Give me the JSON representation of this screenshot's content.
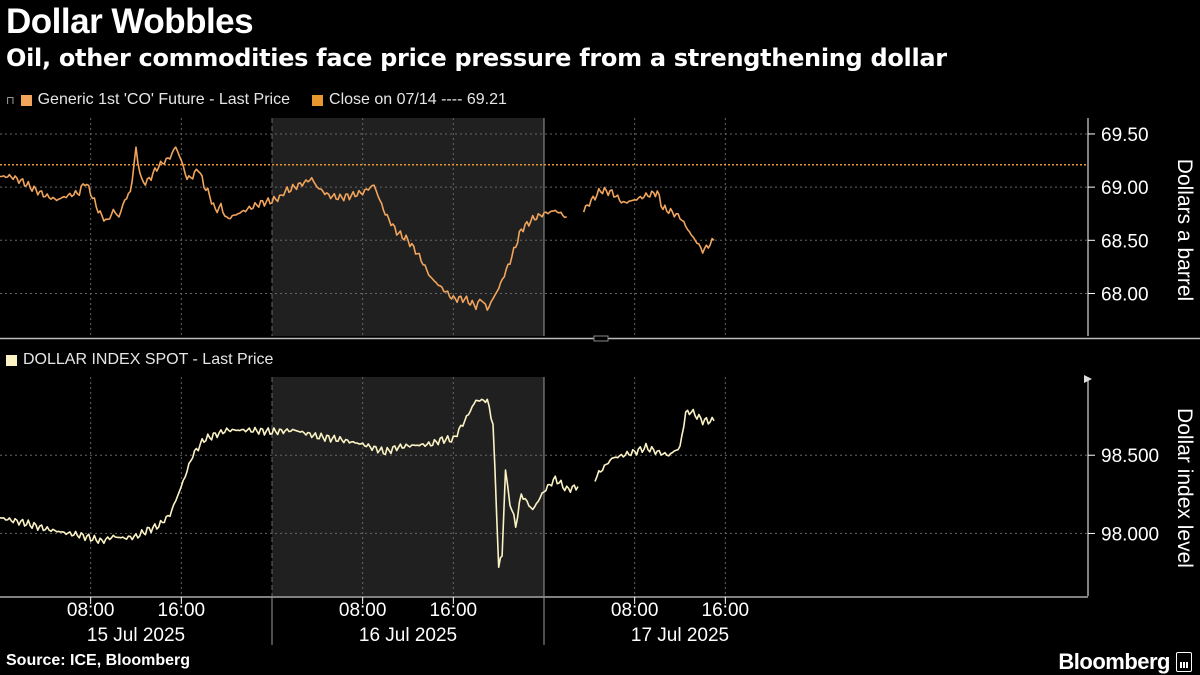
{
  "header": {
    "title": "Dollar Wobbles",
    "subtitle": "Oil, other commodities face price pressure from a strengthening dollar"
  },
  "footer": {
    "source": "Source: ICE, Bloomberg",
    "brand": "Bloomberg"
  },
  "colors": {
    "oil": "#f0a45c",
    "close_line": "#e8962e",
    "dollar": "#fbf3c4",
    "axis": "#ffffff",
    "grid": "#666666",
    "shade": "#202020"
  },
  "chart_data": [
    {
      "type": "line",
      "legend": [
        "Generic 1st 'CO' Future - Last Price",
        "Close on 07/14 ---- 69.21"
      ],
      "ylabel": "Dollars a barrel",
      "yticks": [
        "69.50",
        "69.00",
        "68.50",
        "68.00"
      ],
      "ylim": [
        67.6,
        69.65
      ],
      "reference_line": {
        "label": "Close on 07/14",
        "value": 69.21
      },
      "series": [
        {
          "name": "Generic 1st 'CO' Future - Last Price",
          "segments": [
            [
              [
                0,
                69.1
              ],
              [
                1,
                69.1
              ],
              [
                2,
                69.05
              ],
              [
                3,
                68.98
              ],
              [
                4,
                68.92
              ],
              [
                5,
                68.88
              ],
              [
                6,
                68.92
              ],
              [
                7,
                68.95
              ],
              [
                7.5,
                69.05
              ],
              [
                8,
                68.95
              ],
              [
                8.5,
                68.82
              ],
              [
                9,
                68.72
              ],
              [
                9.5,
                68.68
              ],
              [
                10,
                68.78
              ],
              [
                10.5,
                68.72
              ],
              [
                11,
                68.88
              ],
              [
                11.5,
                68.95
              ],
              [
                12,
                69.35
              ],
              [
                12.5,
                69.05
              ],
              [
                13,
                69.05
              ],
              [
                14,
                69.2
              ],
              [
                15,
                69.28
              ],
              [
                15.5,
                69.38
              ],
              [
                16,
                69.25
              ],
              [
                16.5,
                69.08
              ],
              [
                17,
                69.1
              ],
              [
                17.5,
                69.18
              ],
              [
                18,
                69.02
              ],
              [
                18.5,
                68.92
              ],
              [
                19,
                68.78
              ],
              [
                19.5,
                68.82
              ],
              [
                20,
                68.7
              ],
              [
                21,
                68.75
              ],
              [
                22,
                68.8
              ],
              [
                23,
                68.85
              ],
              [
                24,
                68.87
              ],
              [
                25,
                68.92
              ]
            ],
            [
              [
                25,
                68.95
              ],
              [
                26,
                69.0
              ],
              [
                27,
                69.05
              ],
              [
                27.5,
                69.08
              ],
              [
                28,
                69.0
              ],
              [
                29,
                68.92
              ],
              [
                30,
                68.9
              ],
              [
                31,
                68.92
              ],
              [
                32,
                68.95
              ],
              [
                33,
                69.02
              ],
              [
                33.5,
                68.88
              ],
              [
                34,
                68.75
              ],
              [
                35,
                68.58
              ],
              [
                36,
                68.5
              ],
              [
                37,
                68.35
              ],
              [
                38,
                68.15
              ],
              [
                39,
                68.05
              ],
              [
                40,
                67.95
              ],
              [
                41,
                67.95
              ],
              [
                42,
                67.88
              ],
              [
                42.5,
                67.95
              ],
              [
                43,
                67.85
              ],
              [
                44,
                68.05
              ],
              [
                45,
                68.3
              ],
              [
                46,
                68.6
              ],
              [
                47,
                68.7
              ],
              [
                48,
                68.75
              ],
              [
                49,
                68.78
              ],
              [
                50,
                68.72
              ]
            ],
            [
              [
                51.5,
                68.78
              ],
              [
                52,
                68.85
              ],
              [
                53,
                68.97
              ],
              [
                54,
                68.95
              ],
              [
                55,
                68.85
              ],
              [
                56,
                68.88
              ],
              [
                57,
                68.92
              ],
              [
                58,
                68.95
              ],
              [
                58.5,
                68.8
              ],
              [
                59,
                68.78
              ],
              [
                60,
                68.72
              ],
              [
                61,
                68.55
              ],
              [
                61.5,
                68.48
              ],
              [
                62,
                68.4
              ],
              [
                62.5,
                68.45
              ],
              [
                63,
                68.5
              ]
            ]
          ]
        }
      ]
    },
    {
      "type": "line",
      "legend": [
        "DOLLAR INDEX SPOT - Last Price"
      ],
      "ylabel": "Dollar index level",
      "yticks": [
        "98.500",
        "98.000"
      ],
      "ylim": [
        97.6,
        99.0
      ],
      "series": [
        {
          "name": "DOLLAR INDEX SPOT - Last Price",
          "segments": [
            [
              [
                0,
                98.1
              ],
              [
                2,
                98.07
              ],
              [
                4,
                98.03
              ],
              [
                6,
                98.0
              ],
              [
                7,
                97.99
              ],
              [
                8,
                97.97
              ],
              [
                9,
                97.95
              ],
              [
                10,
                97.98
              ],
              [
                11,
                97.97
              ],
              [
                12,
                97.98
              ],
              [
                13,
                98.02
              ],
              [
                14,
                98.05
              ],
              [
                15,
                98.12
              ],
              [
                16,
                98.3
              ],
              [
                17,
                98.5
              ],
              [
                18,
                98.6
              ],
              [
                19,
                98.63
              ],
              [
                20,
                98.66
              ],
              [
                22,
                98.66
              ],
              [
                24,
                98.65
              ],
              [
                26,
                98.66
              ],
              [
                28,
                98.62
              ],
              [
                30,
                98.6
              ],
              [
                32,
                98.57
              ],
              [
                34,
                98.52
              ],
              [
                35,
                98.55
              ],
              [
                36,
                98.56
              ],
              [
                38,
                98.57
              ],
              [
                39,
                98.6
              ],
              [
                40,
                98.6
              ],
              [
                41,
                98.72
              ],
              [
                42,
                98.85
              ],
              [
                43,
                98.85
              ],
              [
                43.5,
                98.7
              ],
              [
                44,
                97.8
              ],
              [
                44.3,
                97.85
              ],
              [
                44.6,
                98.4
              ],
              [
                45,
                98.2
              ],
              [
                45.5,
                98.05
              ],
              [
                46,
                98.25
              ],
              [
                47,
                98.15
              ],
              [
                48,
                98.27
              ],
              [
                49,
                98.35
              ],
              [
                50,
                98.28
              ],
              [
                51,
                98.3
              ]
            ],
            [
              [
                52.5,
                98.35
              ],
              [
                53,
                98.4
              ],
              [
                54,
                98.48
              ],
              [
                55,
                98.5
              ],
              [
                56,
                98.52
              ],
              [
                57,
                98.55
              ],
              [
                58,
                98.52
              ],
              [
                59,
                98.5
              ],
              [
                60,
                98.55
              ],
              [
                60.5,
                98.77
              ],
              [
                61,
                98.78
              ],
              [
                62,
                98.72
              ],
              [
                63,
                98.72
              ]
            ]
          ]
        }
      ]
    },
    {
      "type": "axis",
      "x_unit": "hours since 00:00, 15 Jul 2025",
      "xlim": [
        0,
        96
      ],
      "xticks": [
        {
          "x": 8,
          "label": "08:00"
        },
        {
          "x": 16,
          "label": "16:00"
        },
        {
          "x": 32,
          "label": "08:00"
        },
        {
          "x": 40,
          "label": "16:00"
        },
        {
          "x": 56,
          "label": "08:00"
        },
        {
          "x": 64,
          "label": "16:00"
        }
      ],
      "date_labels": [
        {
          "x": 12,
          "label": "15 Jul 2025"
        },
        {
          "x": 36,
          "label": "16 Jul 2025"
        },
        {
          "x": 60,
          "label": "17 Jul 2025"
        }
      ],
      "day_boundaries": [
        24,
        48
      ],
      "shaded_range": [
        24,
        48
      ]
    }
  ]
}
